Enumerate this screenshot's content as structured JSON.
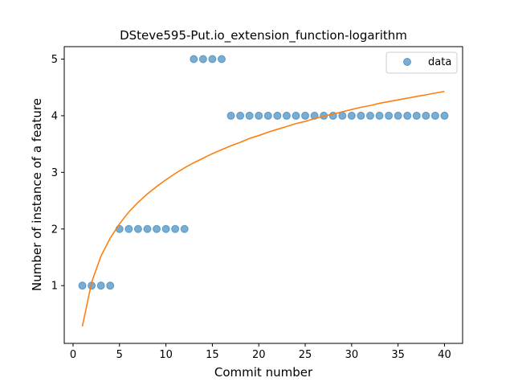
{
  "chart_data": {
    "type": "scatter",
    "title": "DSteve595-Put.io_extension_function-logarithm",
    "xlabel": "Commit number",
    "ylabel": "Number of instance of a feature",
    "xlim": [
      -0.95,
      41.95
    ],
    "ylim": [
      -0.02,
      5.22
    ],
    "xticks": [
      0,
      5,
      10,
      15,
      20,
      25,
      30,
      35,
      40
    ],
    "yticks": [
      1,
      2,
      3,
      4,
      5
    ],
    "grid": false,
    "legend": {
      "placement": "top-right",
      "entries": [
        "data"
      ]
    },
    "colors": {
      "data": "#1f77b4",
      "fit": "#ff7f0e"
    },
    "series": [
      {
        "name": "data",
        "kind": "scatter",
        "x": [
          1,
          2,
          3,
          4,
          5,
          6,
          7,
          8,
          9,
          10,
          11,
          12,
          13,
          14,
          15,
          16,
          17,
          18,
          19,
          20,
          21,
          22,
          23,
          24,
          25,
          26,
          27,
          28,
          29,
          30,
          31,
          32,
          33,
          34,
          35,
          36,
          37,
          38,
          39,
          40
        ],
        "y": [
          1,
          1,
          1,
          1,
          2,
          2,
          2,
          2,
          2,
          2,
          2,
          2,
          5,
          5,
          5,
          5,
          4,
          4,
          4,
          4,
          4,
          4,
          4,
          4,
          4,
          4,
          4,
          4,
          4,
          4,
          4,
          4,
          4,
          4,
          4,
          4,
          4,
          4,
          4,
          4
        ]
      },
      {
        "kind": "line",
        "x": [
          1,
          2,
          3,
          4,
          5,
          6,
          7,
          8,
          9,
          10,
          11,
          12,
          13,
          14,
          15,
          16,
          17,
          18,
          19,
          20,
          21,
          22,
          23,
          24,
          25,
          26,
          27,
          28,
          29,
          30,
          31,
          32,
          33,
          34,
          35,
          36,
          37,
          38,
          39,
          40
        ],
        "y": [
          0.28,
          1.06,
          1.52,
          1.84,
          2.09,
          2.3,
          2.47,
          2.62,
          2.75,
          2.87,
          2.98,
          3.08,
          3.17,
          3.25,
          3.33,
          3.4,
          3.47,
          3.53,
          3.6,
          3.65,
          3.71,
          3.76,
          3.81,
          3.86,
          3.9,
          3.95,
          3.99,
          4.03,
          4.07,
          4.11,
          4.15,
          4.18,
          4.22,
          4.25,
          4.28,
          4.31,
          4.34,
          4.37,
          4.4,
          4.43
        ]
      }
    ]
  }
}
